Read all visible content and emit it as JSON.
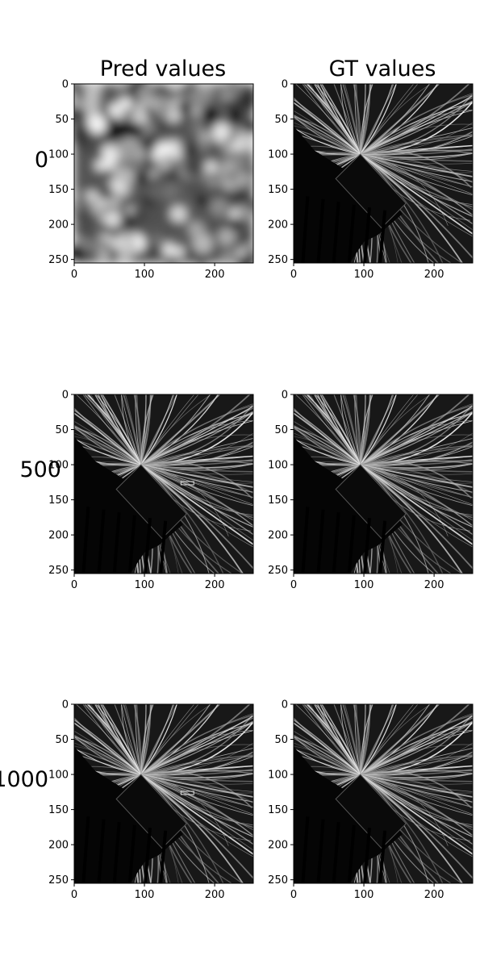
{
  "chart_data": {
    "type": "image-grid",
    "columns": [
      {
        "title": "Pred values"
      },
      {
        "title": "GT values"
      }
    ],
    "rows": [
      {
        "label": "0"
      },
      {
        "label": "500"
      },
      {
        "label": "1000"
      }
    ],
    "panels": [
      {
        "row": "0",
        "column": "Pred values",
        "content": "noise",
        "colormap": "gray"
      },
      {
        "row": "0",
        "column": "GT values",
        "content": "starburst",
        "colormap": "gray"
      },
      {
        "row": "500",
        "column": "Pred values",
        "content": "starburst",
        "colormap": "gray"
      },
      {
        "row": "500",
        "column": "GT values",
        "content": "starburst",
        "colormap": "gray"
      },
      {
        "row": "1000",
        "column": "Pred values",
        "content": "starburst",
        "colormap": "gray"
      },
      {
        "row": "1000",
        "column": "GT values",
        "content": "starburst",
        "colormap": "gray"
      }
    ],
    "xlim": [
      0,
      255
    ],
    "ylim": [
      255,
      0
    ],
    "x_ticks": [
      0,
      100,
      200
    ],
    "y_ticks": [
      0,
      50,
      100,
      150,
      200,
      250
    ]
  }
}
